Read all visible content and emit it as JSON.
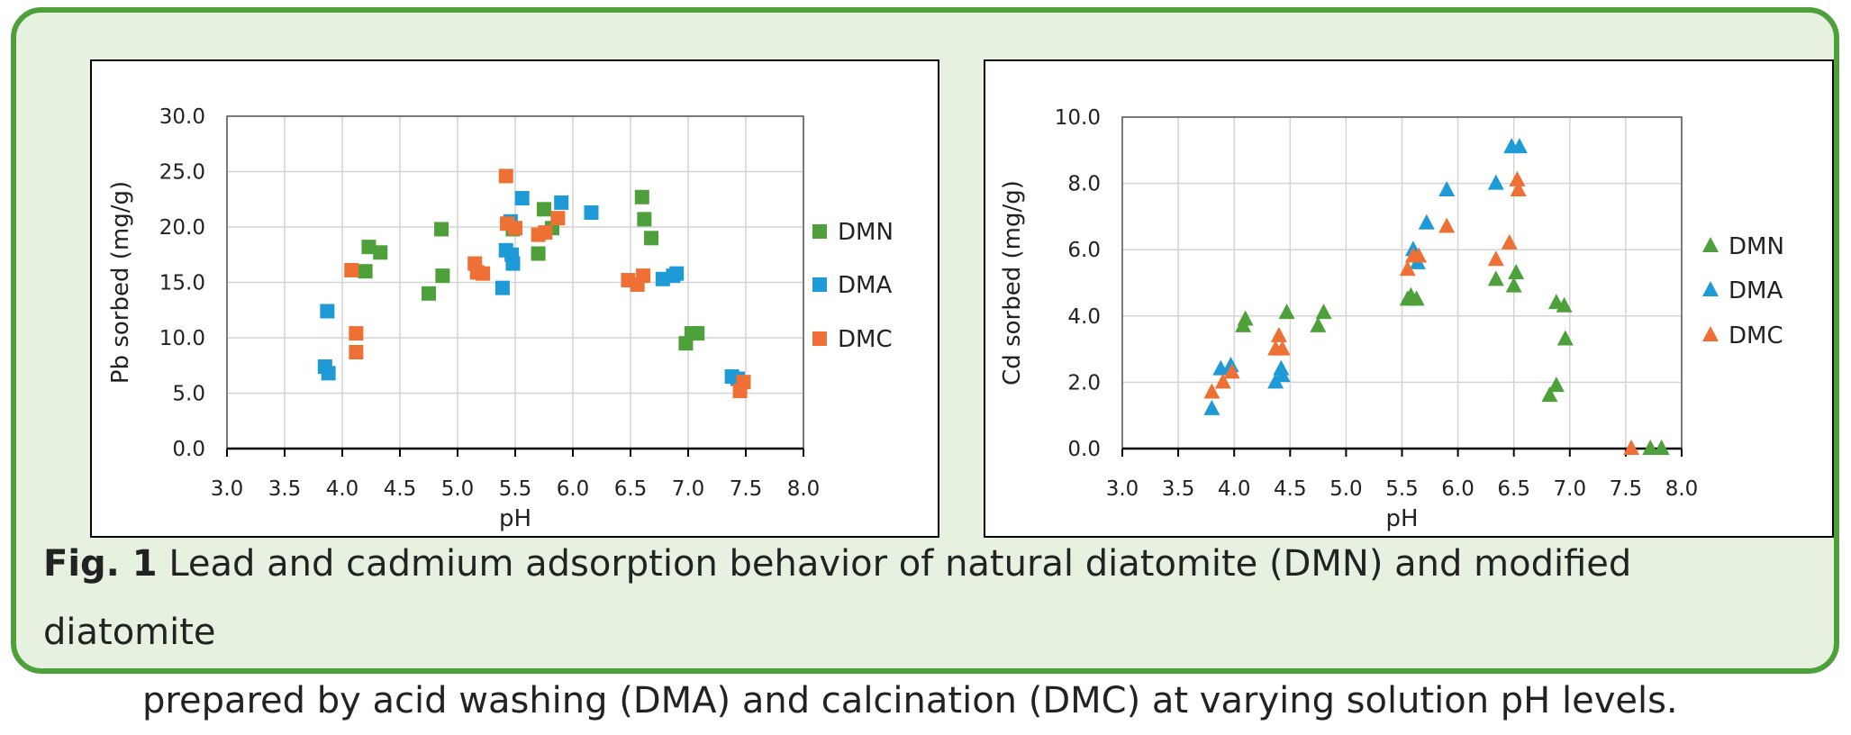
{
  "colors": {
    "DMN": "#4ea03a",
    "DMA": "#1e9bd7",
    "DMC": "#ef7034",
    "border": "#4ea03a",
    "background": "#e6f2df"
  },
  "caption": {
    "fig_label": "Fig. 1",
    "line1": "Lead and cadmium adsorption behavior of natural diatomite (DMN) and modified diatomite",
    "line2": "prepared by acid washing (DMA) and calcination (DMC) at varying solution pH levels."
  },
  "chart_data": [
    {
      "type": "scatter",
      "marker": "square",
      "xlabel": "pH",
      "ylabel": "Pb sorbed (mg/g)",
      "xlim": [
        3.0,
        8.0
      ],
      "ylim": [
        0,
        30
      ],
      "x_ticks": [
        "3.0",
        "3.5",
        "4.0",
        "4.5",
        "5.0",
        "5.5",
        "6.0",
        "6.5",
        "7.0",
        "7.5",
        "8.0"
      ],
      "y_ticks": [
        "0.0",
        "5.0",
        "10.0",
        "15.0",
        "20.0",
        "25.0",
        "30.0"
      ],
      "grid": true,
      "legend": "right",
      "series": [
        {
          "name": "DMN",
          "points": [
            [
              4.2,
              16.0
            ],
            [
              4.23,
              18.2
            ],
            [
              4.33,
              17.7
            ],
            [
              4.75,
              14.0
            ],
            [
              4.86,
              19.8
            ],
            [
              4.87,
              15.6
            ],
            [
              5.48,
              19.8
            ],
            [
              5.7,
              17.6
            ],
            [
              5.75,
              21.6
            ],
            [
              5.82,
              19.9
            ],
            [
              6.6,
              22.7
            ],
            [
              6.62,
              20.7
            ],
            [
              6.68,
              19.0
            ],
            [
              6.98,
              9.5
            ],
            [
              7.03,
              10.4
            ],
            [
              7.08,
              10.4
            ]
          ]
        },
        {
          "name": "DMA",
          "points": [
            [
              3.85,
              7.4
            ],
            [
              3.87,
              12.4
            ],
            [
              3.88,
              6.8
            ],
            [
              5.39,
              14.5
            ],
            [
              5.42,
              17.9
            ],
            [
              5.46,
              20.5
            ],
            [
              5.47,
              17.5
            ],
            [
              5.48,
              16.7
            ],
            [
              5.56,
              22.6
            ],
            [
              5.9,
              22.2
            ],
            [
              6.16,
              21.3
            ],
            [
              6.78,
              15.3
            ],
            [
              6.87,
              15.6
            ],
            [
              6.9,
              15.8
            ],
            [
              7.38,
              6.5
            ],
            [
              7.43,
              6.3
            ]
          ]
        },
        {
          "name": "DMC",
          "points": [
            [
              4.08,
              16.1
            ],
            [
              4.12,
              10.4
            ],
            [
              4.12,
              8.7
            ],
            [
              5.15,
              16.7
            ],
            [
              5.17,
              15.9
            ],
            [
              5.22,
              15.8
            ],
            [
              5.42,
              24.6
            ],
            [
              5.43,
              20.3
            ],
            [
              5.5,
              19.9
            ],
            [
              5.7,
              19.3
            ],
            [
              5.76,
              19.5
            ],
            [
              5.87,
              20.8
            ],
            [
              6.48,
              15.2
            ],
            [
              6.56,
              14.8
            ],
            [
              6.61,
              15.6
            ],
            [
              7.45,
              5.2
            ],
            [
              7.48,
              6.0
            ]
          ]
        }
      ]
    },
    {
      "type": "scatter",
      "marker": "triangle",
      "xlabel": "pH",
      "ylabel": "Cd sorbed (mg/g)",
      "xlim": [
        3.0,
        8.0
      ],
      "ylim": [
        0,
        10
      ],
      "x_ticks": [
        "3.0",
        "3.5",
        "4.0",
        "4.5",
        "5.0",
        "5.5",
        "6.0",
        "6.5",
        "7.0",
        "7.5",
        "8.0"
      ],
      "y_ticks": [
        "0.0",
        "2.0",
        "4.0",
        "6.0",
        "8.0",
        "10.0"
      ],
      "grid": true,
      "legend": "right",
      "series": [
        {
          "name": "DMN",
          "points": [
            [
              4.08,
              3.7
            ],
            [
              4.1,
              3.9
            ],
            [
              4.47,
              4.1
            ],
            [
              4.75,
              3.7
            ],
            [
              4.8,
              4.1
            ],
            [
              5.55,
              4.5
            ],
            [
              5.58,
              4.6
            ],
            [
              5.63,
              4.5
            ],
            [
              6.34,
              5.1
            ],
            [
              6.5,
              4.9
            ],
            [
              6.52,
              5.3
            ],
            [
              6.82,
              1.6
            ],
            [
              6.88,
              4.4
            ],
            [
              6.88,
              1.9
            ],
            [
              6.95,
              4.3
            ],
            [
              6.96,
              3.3
            ],
            [
              7.72,
              0.0
            ],
            [
              7.82,
              0.0
            ]
          ]
        },
        {
          "name": "DMA",
          "points": [
            [
              3.8,
              1.2
            ],
            [
              3.88,
              2.4
            ],
            [
              3.97,
              2.5
            ],
            [
              4.37,
              2.0
            ],
            [
              4.42,
              2.4
            ],
            [
              4.43,
              2.2
            ],
            [
              5.6,
              6.0
            ],
            [
              5.64,
              5.6
            ],
            [
              5.72,
              6.8
            ],
            [
              5.9,
              7.8
            ],
            [
              6.34,
              8.0
            ],
            [
              6.48,
              9.1
            ],
            [
              6.55,
              9.1
            ]
          ]
        },
        {
          "name": "DMC",
          "points": [
            [
              3.8,
              1.7
            ],
            [
              3.9,
              2.0
            ],
            [
              3.98,
              2.3
            ],
            [
              4.37,
              3.0
            ],
            [
              4.4,
              3.4
            ],
            [
              4.43,
              3.0
            ],
            [
              5.55,
              5.4
            ],
            [
              5.6,
              5.8
            ],
            [
              5.65,
              5.8
            ],
            [
              5.9,
              6.7
            ],
            [
              6.34,
              5.7
            ],
            [
              6.46,
              6.2
            ],
            [
              6.53,
              8.1
            ],
            [
              6.54,
              7.8
            ],
            [
              7.55,
              0.0
            ]
          ]
        }
      ]
    }
  ]
}
